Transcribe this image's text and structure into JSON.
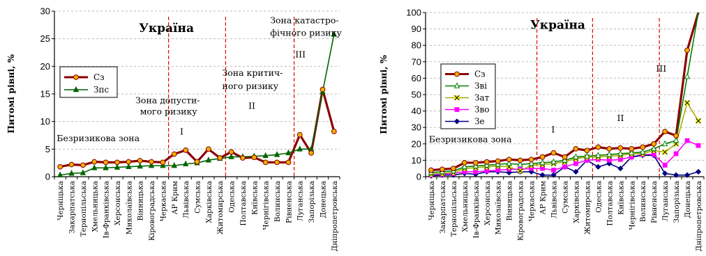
{
  "categories": [
    "Черніцька",
    "Закарпатська",
    "Тернопільська",
    "Хмельницька",
    "Ів-Франківська",
    "Херсонська",
    "Миколаївська",
    "Вінницька",
    "Кіровоградська",
    "Черкаська",
    "АР Крим",
    "Львівська",
    "Сумська",
    "Харківська",
    "Житомирська",
    "Одеська",
    "Полтавська",
    "Київська",
    "Чернігівська",
    "Волинська",
    "Рівненська",
    "Луганська",
    "Запорізька",
    "Донецька",
    "Дніпропетровська"
  ],
  "chart_data": [
    {
      "type": "line",
      "title": "Україна",
      "ylabel": "Питомі рівні, %",
      "ylim": [
        0,
        30
      ],
      "yticks": [
        0,
        5,
        10,
        15,
        20,
        25,
        30
      ],
      "grid": true,
      "legend_position": "top-left",
      "series": [
        {
          "name": "Сз",
          "color": "#8b0000",
          "marker": "circle",
          "marker_fill": "#f0b000",
          "values": [
            1.8,
            2.2,
            2.1,
            2.7,
            2.6,
            2.6,
            2.7,
            2.9,
            2.7,
            2.6,
            4.1,
            4.8,
            2.7,
            5.0,
            3.4,
            4.5,
            3.4,
            3.5,
            2.6,
            2.6,
            2.6,
            7.6,
            4.3,
            15.8,
            8.2
          ]
        },
        {
          "name": "Зпс",
          "color": "#006400",
          "marker": "triangle",
          "marker_fill": "#006400",
          "values": [
            0.3,
            0.6,
            0.7,
            1.6,
            1.6,
            1.7,
            1.8,
            1.9,
            2.0,
            2.0,
            2.0,
            2.3,
            2.5,
            3.0,
            3.3,
            3.6,
            3.6,
            3.7,
            3.8,
            4.0,
            4.3,
            5.0,
            5.0,
            15.4,
            25.8
          ]
        }
      ],
      "zone_dividers_after_index": [
        9,
        14,
        20
      ],
      "annotations": [
        {
          "label": "Безризикова зона",
          "x_index": 0.2,
          "y": 6.4
        },
        {
          "label": "I",
          "x_index": 11.0,
          "y": 7.6
        },
        {
          "label": "Зона допусти-",
          "x_index": 7.1,
          "y": 13.3
        },
        {
          "label": "мого ризику",
          "x_index": 7.5,
          "y": 11.3
        },
        {
          "label": "II",
          "x_index": 17.0,
          "y": 12.3
        },
        {
          "label": "Зона критич-",
          "x_index": 14.7,
          "y": 18.3
        },
        {
          "label": "ного ризику",
          "x_index": 14.7,
          "y": 15.9
        },
        {
          "label": "III",
          "x_index": 21.1,
          "y": 21.6
        },
        {
          "label": "Зона катастро-",
          "x_index": 18.9,
          "y": 27.8
        },
        {
          "label": "фічного ризику",
          "x_index": 18.9,
          "y": 25.5
        },
        {
          "label": "Україна",
          "x_index": 7.4,
          "y": 26.2
        }
      ]
    },
    {
      "type": "line",
      "title": "Україна",
      "ylabel": "Питомі рівні, %",
      "ylim": [
        0,
        100
      ],
      "yticks": [
        0,
        10,
        20,
        30,
        40,
        50,
        60,
        70,
        80,
        90,
        100
      ],
      "grid": true,
      "legend_position": "top-left",
      "series": [
        {
          "name": "Сз",
          "color": "#8b0000",
          "marker": "circle",
          "marker_fill": "#f0b000",
          "values": [
            4,
            4.5,
            5,
            8.5,
            8.5,
            9,
            9.5,
            10.5,
            10,
            10.5,
            12,
            14.5,
            12,
            17,
            16,
            18,
            17,
            17.5,
            17,
            18,
            20,
            27.5,
            25,
            77,
            103
          ]
        },
        {
          "name": "Зві",
          "color": "#008000",
          "marker": "triangle",
          "marker_fill": "#ffffff",
          "values": [
            2.5,
            3,
            3.5,
            6,
            6.5,
            7,
            7.5,
            8,
            7.5,
            8,
            8.5,
            9,
            10,
            12,
            12.5,
            13,
            13.5,
            14,
            14.5,
            15,
            17,
            20,
            22,
            61,
            101
          ]
        },
        {
          "name": "Зат",
          "color": "#aaaa00",
          "marker": "x",
          "marker_fill": "#ffff00",
          "values": [
            1.5,
            2,
            2.5,
            5,
            5.5,
            6,
            6.5,
            6,
            3.5,
            7,
            7.5,
            8,
            9,
            11,
            12,
            12,
            12.5,
            13,
            14,
            14,
            16,
            15,
            20,
            45,
            34
          ]
        },
        {
          "name": "Зво",
          "color": "#ff00ff",
          "marker": "square",
          "marker_fill": "#ff00ff",
          "values": [
            1,
            1.5,
            2,
            3,
            3,
            3.5,
            4,
            4.5,
            4.5,
            5,
            5,
            4,
            6,
            8,
            10,
            10.5,
            10,
            10.5,
            12,
            13.5,
            13.5,
            7,
            14,
            22,
            19
          ]
        },
        {
          "name": "Зе",
          "color": "#000080",
          "marker": "diamond",
          "marker_fill": "#000080",
          "values": [
            0.5,
            1,
            1,
            2,
            1.5,
            3,
            3,
            2.5,
            3,
            3,
            1,
            1,
            6,
            3,
            10,
            6,
            8,
            5,
            12,
            13,
            13,
            2,
            1,
            1,
            3
          ]
        }
      ],
      "zone_dividers_after_index": [
        9,
        14,
        20
      ],
      "annotations": [
        {
          "label": "Безризикова зона",
          "x_index": 0.3,
          "y": 21
        },
        {
          "label": "I",
          "x_index": 11.3,
          "y": 27
        },
        {
          "label": "II",
          "x_index": 17.2,
          "y": 34
        },
        {
          "label": "III",
          "x_index": 20.7,
          "y": 64
        },
        {
          "label": "Україна",
          "x_index": 9.4,
          "y": 90
        }
      ]
    }
  ]
}
